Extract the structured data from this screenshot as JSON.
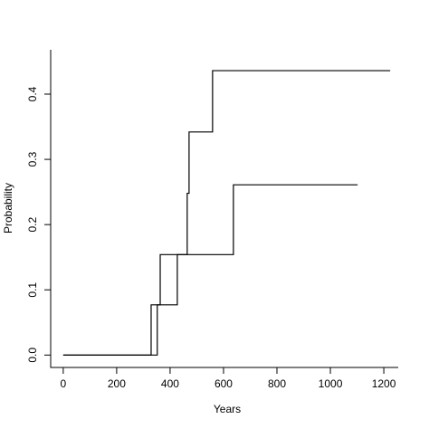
{
  "chart_data": {
    "type": "step",
    "x_label": "Years",
    "y_label": "Probability",
    "series": [
      {
        "color": "#000000",
        "x": [
          0,
          329,
          363,
          464,
          471,
          559,
          1224
        ],
        "values": [
          0,
          0.077,
          0.154,
          0.248,
          0.342,
          0.436,
          0.436
        ]
      },
      {
        "color": "#000000",
        "x": [
          0,
          352,
          427,
          637,
          1102
        ],
        "values": [
          0,
          0.077,
          0.154,
          0.261,
          0.261
        ]
      }
    ],
    "xlim": [
      -47,
      1254
    ],
    "ylim": [
      -0.019,
      0.468
    ],
    "xticks": [
      0,
      200,
      400,
      600,
      800,
      1000,
      1200
    ],
    "yticks": [
      {
        "value": 0,
        "label": "0.0"
      },
      0.1,
      0.2,
      0.3,
      0.4
    ]
  }
}
